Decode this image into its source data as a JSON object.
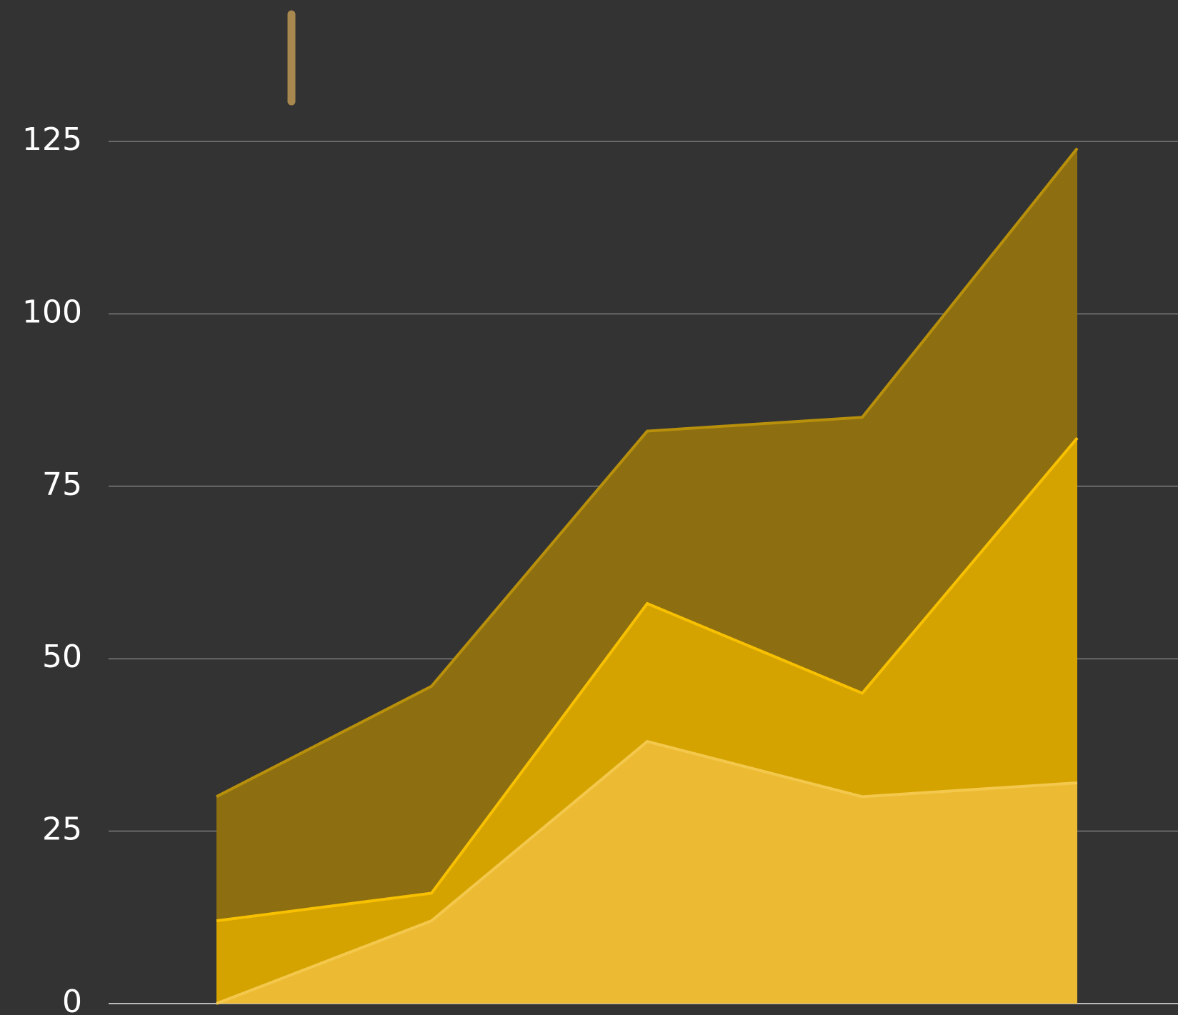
{
  "chart_data": {
    "type": "stacked_area",
    "categories": [
      null,
      null,
      null,
      null,
      null
    ],
    "series": [
      {
        "color": "#edbb33",
        "line_color": "#f4c84c",
        "values": [
          0,
          12,
          38,
          30,
          32
        ]
      },
      {
        "color": "#d4a300",
        "line_color": "#f7c000",
        "values": [
          12,
          4,
          20,
          15,
          50
        ]
      },
      {
        "color": "#8d6e10",
        "line_color": "#b8900b",
        "values": [
          18,
          30,
          25,
          40,
          42
        ]
      }
    ],
    "ylim": [
      0,
      125
    ],
    "yticks": [
      0,
      25,
      50,
      75,
      100,
      125
    ],
    "grid": true
  }
}
